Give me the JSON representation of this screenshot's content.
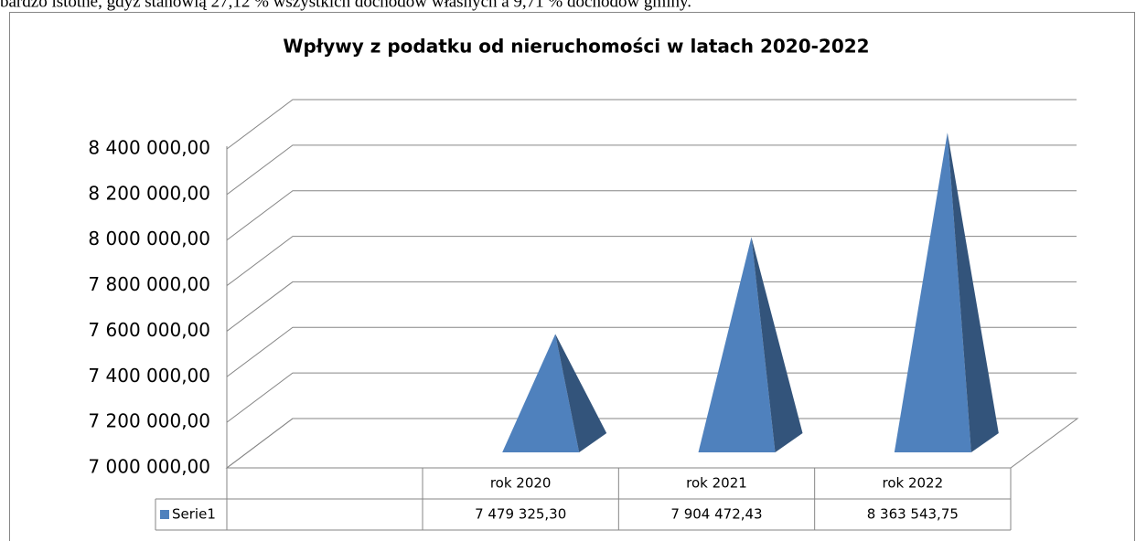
{
  "page_text": "bardzo istotne, gdyż stanowią 27,12 % wszystkich dochodów własnych a 9,71 % dochodów gminy.",
  "chart_data": {
    "type": "pyramid3d",
    "title": "Wpływy z podatku od nieruchomości w latach 2020-2022",
    "categories": [
      "rok 2020",
      "rok 2021",
      "rok 2022"
    ],
    "series": [
      {
        "name": "Serie1",
        "color": "#4f81bd",
        "values": [
          7479325.3,
          7904472.43,
          8363543.75
        ],
        "value_labels": [
          "7 479 325,30",
          "7 904 472,43",
          "8 363 543,75"
        ]
      }
    ],
    "ylim": [
      7000000,
      8400000
    ],
    "yticks": [
      {
        "value": 7000000,
        "label": "7 000 000,00"
      },
      {
        "value": 7200000,
        "label": "7 200 000,00"
      },
      {
        "value": 7400000,
        "label": "7 400 000,00"
      },
      {
        "value": 7600000,
        "label": "7 600 000,00"
      },
      {
        "value": 7800000,
        "label": "7 800 000,00"
      },
      {
        "value": 8000000,
        "label": "8 000 000,00"
      },
      {
        "value": 8200000,
        "label": "8 200 000,00"
      },
      {
        "value": 8400000,
        "label": "8 400 000,00"
      }
    ],
    "grid": true,
    "data_table": true
  }
}
